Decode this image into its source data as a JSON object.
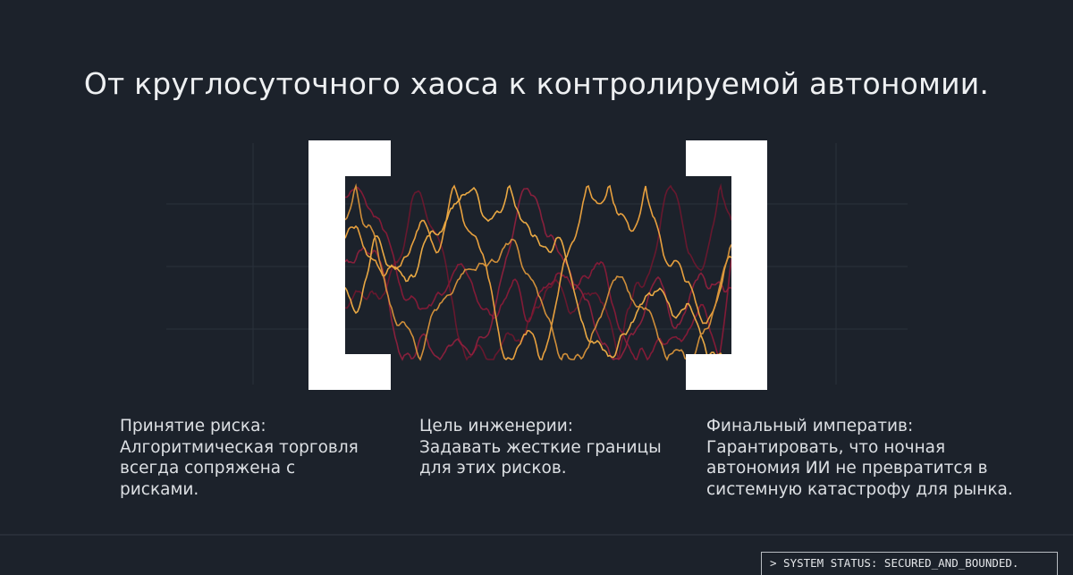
{
  "title": "От круглосуточного хаоса к контролируемой автономии.",
  "columns": [
    {
      "lines": [
        "Принятие риска:",
        "Алгоритмическая торговля",
        "всегда сопряжена с",
        "рисками."
      ]
    },
    {
      "lines": [
        "Цель инженерии:",
        "Задавать жесткие границы",
        "для этих рисков."
      ]
    },
    {
      "lines": [
        "Финальный императив:",
        "Гарантировать, что ночная",
        "автономия ИИ не превратится в",
        "системную катастрофу для рынка."
      ]
    }
  ],
  "status": "> SYSTEM STATUS: SECURED_AND_BOUNDED."
}
